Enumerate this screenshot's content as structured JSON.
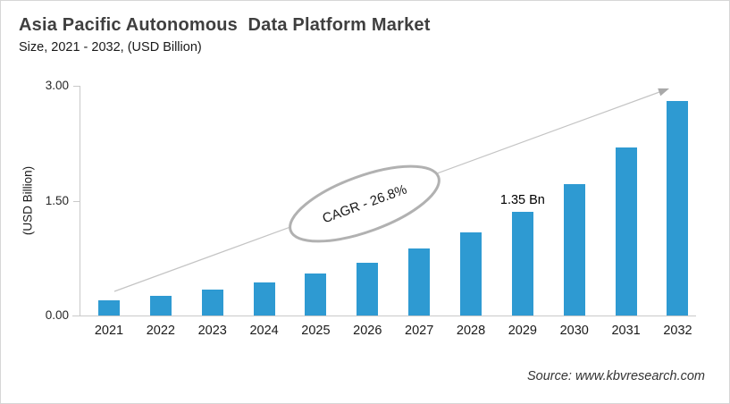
{
  "header": {
    "title": "Asia Pacific Autonomous  Data Platform Market",
    "subtitle": "Size, 2021 - 2032, (USD Billion)"
  },
  "chart_data": {
    "type": "bar",
    "title": "Asia Pacific Autonomous Data Platform Market Size, 2021 - 2032, (USD Billion)",
    "categories": [
      "2021",
      "2022",
      "2023",
      "2024",
      "2025",
      "2026",
      "2027",
      "2028",
      "2029",
      "2030",
      "2031",
      "2032"
    ],
    "values": [
      0.2,
      0.26,
      0.34,
      0.43,
      0.55,
      0.69,
      0.87,
      1.08,
      1.35,
      1.72,
      2.2,
      2.8
    ],
    "xlabel": "",
    "ylabel": "(USD Billion)",
    "ylim": [
      0.0,
      3.0
    ],
    "yticks": [
      {
        "label": "0.00",
        "value": 0.0
      },
      {
        "label": "1.50",
        "value": 1.5
      },
      {
        "label": "3.00",
        "value": 3.0
      }
    ],
    "grid": false,
    "legend": null,
    "bar_color": "#2e9ad2",
    "annotations": {
      "cagr_label": "CAGR - 26.8%",
      "data_label": {
        "category": "2029",
        "text": "1.35 Bn"
      },
      "trend_arrow": true
    }
  },
  "footer": {
    "source": "Source: www.kbvresearch.com"
  },
  "colors": {
    "bar": "#2e9ad2",
    "axis": "#c9c9c9",
    "arrow": "#bfbfbf",
    "ellipse_stroke": "#b1b1b1",
    "title_text": "#3f3f3f",
    "body_text": "#1a1a1a"
  }
}
